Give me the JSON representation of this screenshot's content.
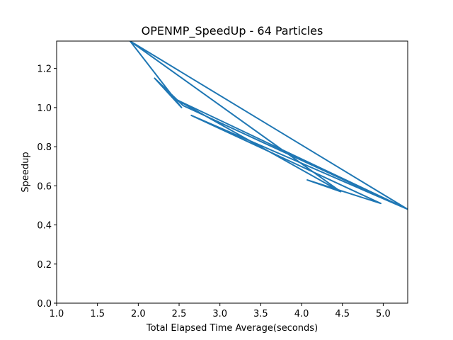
{
  "chart_data": {
    "type": "line",
    "title": "OPENMP_SpeedUp - 64 Particles",
    "xlabel": "Total Elapsed Time Average(seconds)",
    "ylabel": "Speedup",
    "xlim": [
      1.0,
      5.3
    ],
    "ylim": [
      0.0,
      1.34
    ],
    "xticks": [
      "1.0",
      "1.5",
      "2.0",
      "2.5",
      "3.0",
      "3.5",
      "4.0",
      "4.5",
      "5.0"
    ],
    "yticks": [
      "0.0",
      "0.2",
      "0.4",
      "0.6",
      "0.8",
      "1.0",
      "1.2"
    ],
    "grid": false,
    "series": [
      {
        "color": "#1f77b4",
        "x": [
          1.9,
          5.3,
          2.47,
          4.48,
          1.9,
          2.53,
          2.2,
          2.55,
          5.3,
          2.65,
          4.97,
          4.07,
          4.48
        ],
        "y": [
          1.34,
          0.48,
          1.04,
          0.57,
          1.34,
          1.0,
          1.15,
          1.01,
          0.48,
          0.96,
          0.51,
          0.63,
          0.57
        ]
      }
    ]
  }
}
